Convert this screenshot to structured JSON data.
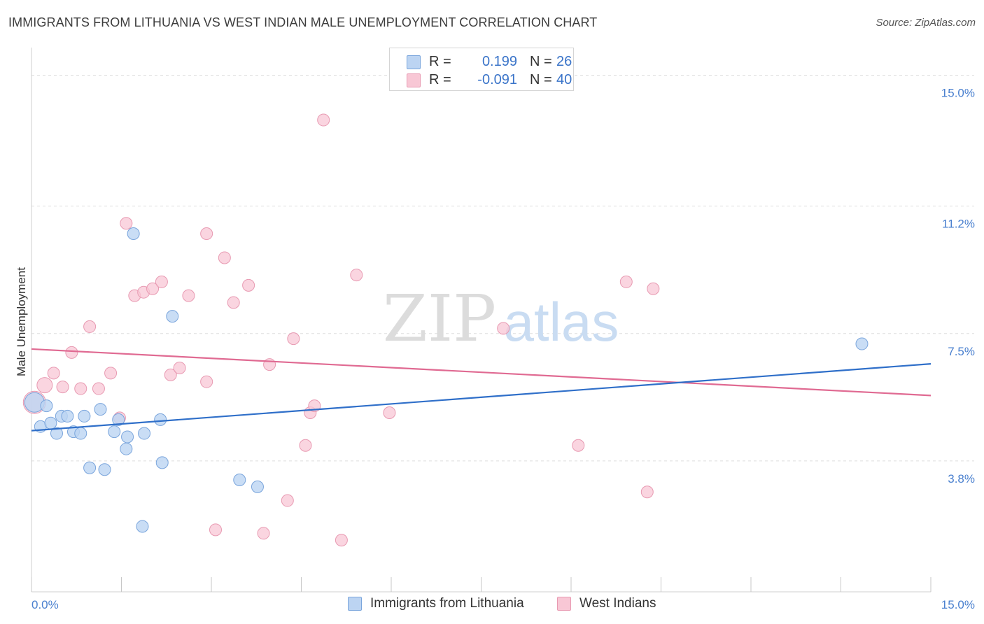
{
  "header": {
    "title": "IMMIGRANTS FROM LITHUANIA VS WEST INDIAN MALE UNEMPLOYMENT CORRELATION CHART",
    "source": "Source: ZipAtlas.com"
  },
  "watermark": {
    "zip": "ZIP",
    "atlas": "atlas"
  },
  "legend": {
    "r_label": "R =",
    "n_label": "N =",
    "rows": [
      {
        "r": "0.199",
        "n": "26",
        "color": "#a9c8f0"
      },
      {
        "r": "-0.091",
        "n": "40",
        "color": "#f5b8cb"
      }
    ]
  },
  "bottom_legend": {
    "series1": "Immigrants from Lithuania",
    "series2": "West Indians"
  },
  "colors": {
    "blue_fill": "#bcd4f2",
    "blue_stroke": "#7aa5dc",
    "blue_line": "#2f6fc9",
    "pink_fill": "#f8c7d5",
    "pink_stroke": "#e89ab2",
    "pink_line": "#e06a92",
    "tick_label": "#4a80cf",
    "grid": "#dddddd"
  },
  "chart_data": {
    "type": "scatter",
    "title": "IMMIGRANTS FROM LITHUANIA VS WEST INDIAN MALE UNEMPLOYMENT CORRELATION CHART",
    "xlabel": "",
    "ylabel": "Male Unemployment",
    "xlim": [
      0,
      15
    ],
    "ylim": [
      0,
      15.6
    ],
    "x_tick_labels": [
      {
        "value": 0,
        "label": "0.0%"
      },
      {
        "value": 15,
        "label": "15.0%"
      }
    ],
    "x_minor_ticks": [
      0,
      1.5,
      3,
      4.5,
      6,
      7.5,
      9,
      10.5,
      12,
      13.5,
      15
    ],
    "y_ticks": [
      {
        "value": 3.8,
        "label": "3.8%"
      },
      {
        "value": 7.5,
        "label": "7.5%"
      },
      {
        "value": 11.2,
        "label": "11.2%"
      },
      {
        "value": 15.0,
        "label": "15.0%"
      }
    ],
    "grid": true,
    "legend_placement": "top-center",
    "series": [
      {
        "name": "Immigrants from Lithuania",
        "color": "#a9c8f0",
        "points": [
          [
            0.05,
            5.5
          ],
          [
            0.15,
            4.8
          ],
          [
            0.25,
            5.4
          ],
          [
            0.32,
            4.9
          ],
          [
            0.42,
            4.6
          ],
          [
            0.5,
            5.1
          ],
          [
            0.6,
            5.1
          ],
          [
            0.7,
            4.65
          ],
          [
            0.82,
            4.6
          ],
          [
            0.88,
            5.1
          ],
          [
            0.97,
            3.6
          ],
          [
            1.15,
            5.3
          ],
          [
            1.22,
            3.55
          ],
          [
            1.38,
            4.65
          ],
          [
            1.45,
            5.0
          ],
          [
            1.58,
            4.15
          ],
          [
            1.6,
            4.5
          ],
          [
            1.7,
            10.4
          ],
          [
            1.85,
            1.9
          ],
          [
            1.88,
            4.6
          ],
          [
            2.15,
            5.0
          ],
          [
            2.18,
            3.75
          ],
          [
            2.35,
            8.0
          ],
          [
            3.47,
            3.25
          ],
          [
            3.77,
            3.05
          ],
          [
            13.85,
            7.2
          ]
        ],
        "trend": {
          "x": [
            0,
            15
          ],
          "y": [
            4.68,
            6.62
          ]
        }
      },
      {
        "name": "West Indians",
        "color": "#f5b8cb",
        "points": [
          [
            0.05,
            5.5
          ],
          [
            0.22,
            6.0
          ],
          [
            0.37,
            6.35
          ],
          [
            0.52,
            5.95
          ],
          [
            0.67,
            6.95
          ],
          [
            0.82,
            5.9
          ],
          [
            0.97,
            7.7
          ],
          [
            1.12,
            5.9
          ],
          [
            1.32,
            6.35
          ],
          [
            1.47,
            5.05
          ],
          [
            1.58,
            10.7
          ],
          [
            1.72,
            8.6
          ],
          [
            1.87,
            8.7
          ],
          [
            2.02,
            8.8
          ],
          [
            2.17,
            9.0
          ],
          [
            2.32,
            6.3
          ],
          [
            2.47,
            6.5
          ],
          [
            2.62,
            8.6
          ],
          [
            2.92,
            10.4
          ],
          [
            2.92,
            6.1
          ],
          [
            3.07,
            1.8
          ],
          [
            3.22,
            9.7
          ],
          [
            3.37,
            8.4
          ],
          [
            3.62,
            8.9
          ],
          [
            3.87,
            1.7
          ],
          [
            3.97,
            6.6
          ],
          [
            4.27,
            2.65
          ],
          [
            4.37,
            7.35
          ],
          [
            4.57,
            4.25
          ],
          [
            4.65,
            5.2
          ],
          [
            4.72,
            5.4
          ],
          [
            4.87,
            13.7
          ],
          [
            5.17,
            1.5
          ],
          [
            5.42,
            9.2
          ],
          [
            5.97,
            5.2
          ],
          [
            7.87,
            7.65
          ],
          [
            9.12,
            4.25
          ],
          [
            9.92,
            9.0
          ],
          [
            10.37,
            8.8
          ],
          [
            10.27,
            2.9
          ]
        ],
        "trend": {
          "x": [
            0,
            15
          ],
          "y": [
            7.05,
            5.7
          ]
        }
      }
    ]
  }
}
